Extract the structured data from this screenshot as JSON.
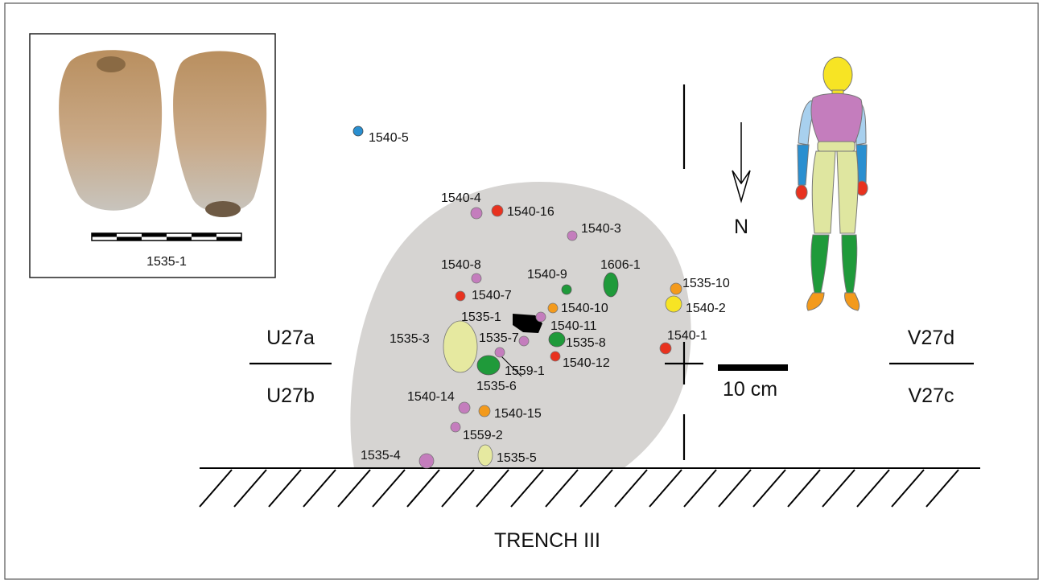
{
  "inset": {
    "caption": "1535-1",
    "colors": {
      "stone_top": "#b98f5f",
      "stone_bottom": "#c8c4bd"
    }
  },
  "plan": {
    "compass": "N",
    "scale_label": "10 cm",
    "trench_label": "TRENCH III",
    "grid_labels": {
      "nw": "U27a",
      "sw": "U27b",
      "ne": "V27d",
      "se": "V27c"
    },
    "concentration_color": "#d6d4d2"
  },
  "finds": [
    {
      "id": "1540-5",
      "label": "1540-5",
      "color": "#2a8fd0"
    },
    {
      "id": "1540-4",
      "label": "1540-4",
      "color": "#c47dbd"
    },
    {
      "id": "1540-16",
      "label": "1540-16",
      "color": "#e8321f"
    },
    {
      "id": "1540-3",
      "label": "1540-3",
      "color": "#c47dbd"
    },
    {
      "id": "1540-8",
      "label": "1540-8",
      "color": "#c47dbd"
    },
    {
      "id": "1540-9",
      "label": "1540-9",
      "color": "#1f9a3a"
    },
    {
      "id": "1606-1",
      "label": "1606-1",
      "color": "#1f9a3a"
    },
    {
      "id": "1540-7",
      "label": "1540-7",
      "color": "#e8321f"
    },
    {
      "id": "1535-10",
      "label": "1535-10",
      "color": "#f39a1c"
    },
    {
      "id": "1540-2",
      "label": "1540-2",
      "color": "#f7e424"
    },
    {
      "id": "1540-10",
      "label": "1540-10",
      "color": "#f39a1c"
    },
    {
      "id": "1535-1",
      "label": "1535-1",
      "color": "#000000"
    },
    {
      "id": "1540-11",
      "label": "1540-11",
      "color": "#c47dbd"
    },
    {
      "id": "1535-3",
      "label": "1535-3",
      "color": "#e6e9a0"
    },
    {
      "id": "1535-7",
      "label": "1535-7",
      "color": "#c47dbd"
    },
    {
      "id": "1535-8",
      "label": "1535-8",
      "color": "#1f9a3a"
    },
    {
      "id": "1540-1",
      "label": "1540-1",
      "color": "#e8321f"
    },
    {
      "id": "1540-12",
      "label": "1540-12",
      "color": "#e8321f"
    },
    {
      "id": "1559-1",
      "label": "1559-1",
      "color": "#1f9a3a"
    },
    {
      "id": "1535-6",
      "label": "1535-6",
      "color": "#c47dbd"
    },
    {
      "id": "1540-14",
      "label": "1540-14",
      "color": "#c47dbd"
    },
    {
      "id": "1540-15",
      "label": "1540-15",
      "color": "#f39a1c"
    },
    {
      "id": "1559-2",
      "label": "1559-2",
      "color": "#c47dbd"
    },
    {
      "id": "1535-4",
      "label": "1535-4",
      "color": "#c47dbd"
    },
    {
      "id": "1535-5",
      "label": "1535-5",
      "color": "#e6e9a0"
    }
  ],
  "figure": {
    "head": "#f7e424",
    "torso": "#c47dbd",
    "upper_arm": "#a8d0ee",
    "forearm": "#2a8fd0",
    "hand": "#e8321f",
    "thigh": "#dfe6a0",
    "shin": "#1f9a3a",
    "foot": "#f39a1c"
  }
}
